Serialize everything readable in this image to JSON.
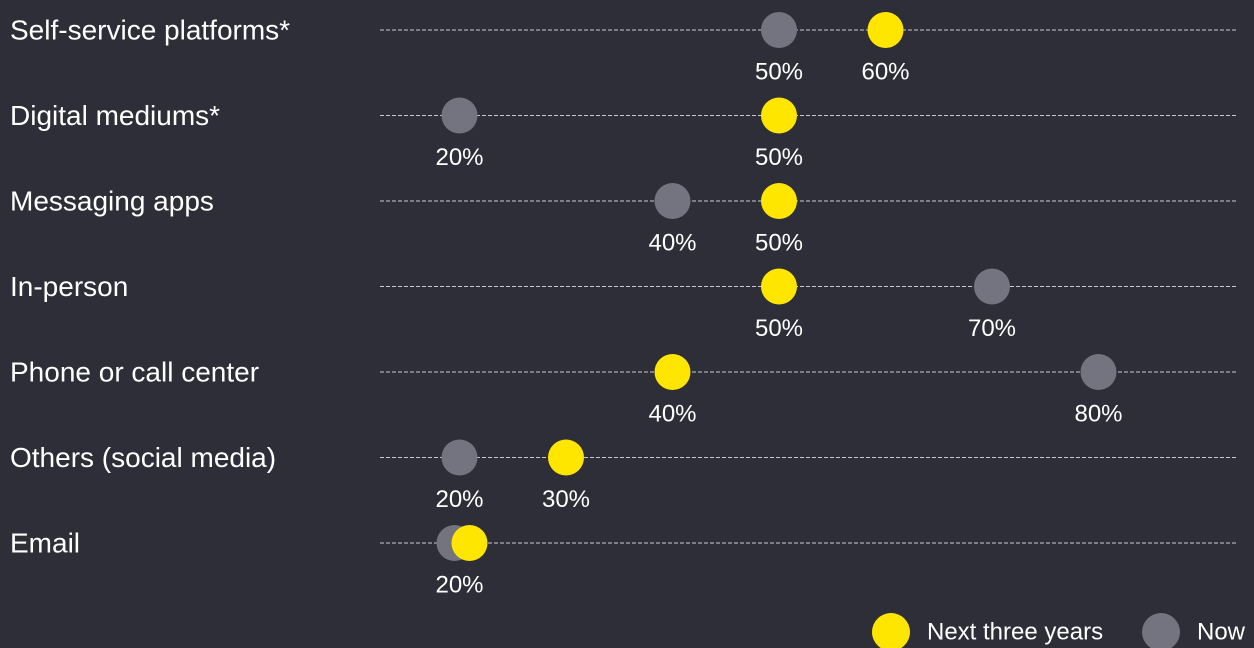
{
  "chart_data": {
    "type": "dot",
    "categories": [
      "Self-service platforms*",
      "Digital mediums*",
      "Messaging apps",
      "In-person",
      "Phone or call center",
      "Others (social media)",
      "Email"
    ],
    "series": [
      {
        "name": "Now",
        "color": "#747480",
        "values": [
          50,
          20,
          40,
          70,
          80,
          20,
          20
        ]
      },
      {
        "name": "Next three years",
        "color": "#ffe600",
        "values": [
          60,
          50,
          50,
          50,
          40,
          30,
          20
        ]
      }
    ],
    "xlim": [
      10,
      100
    ],
    "unit": "%",
    "grid": false,
    "legend": {
      "placement": "bottom-right",
      "items": [
        {
          "label": "Next three years",
          "color": "#ffe600"
        },
        {
          "label": "Now",
          "color": "#747480"
        }
      ]
    }
  }
}
